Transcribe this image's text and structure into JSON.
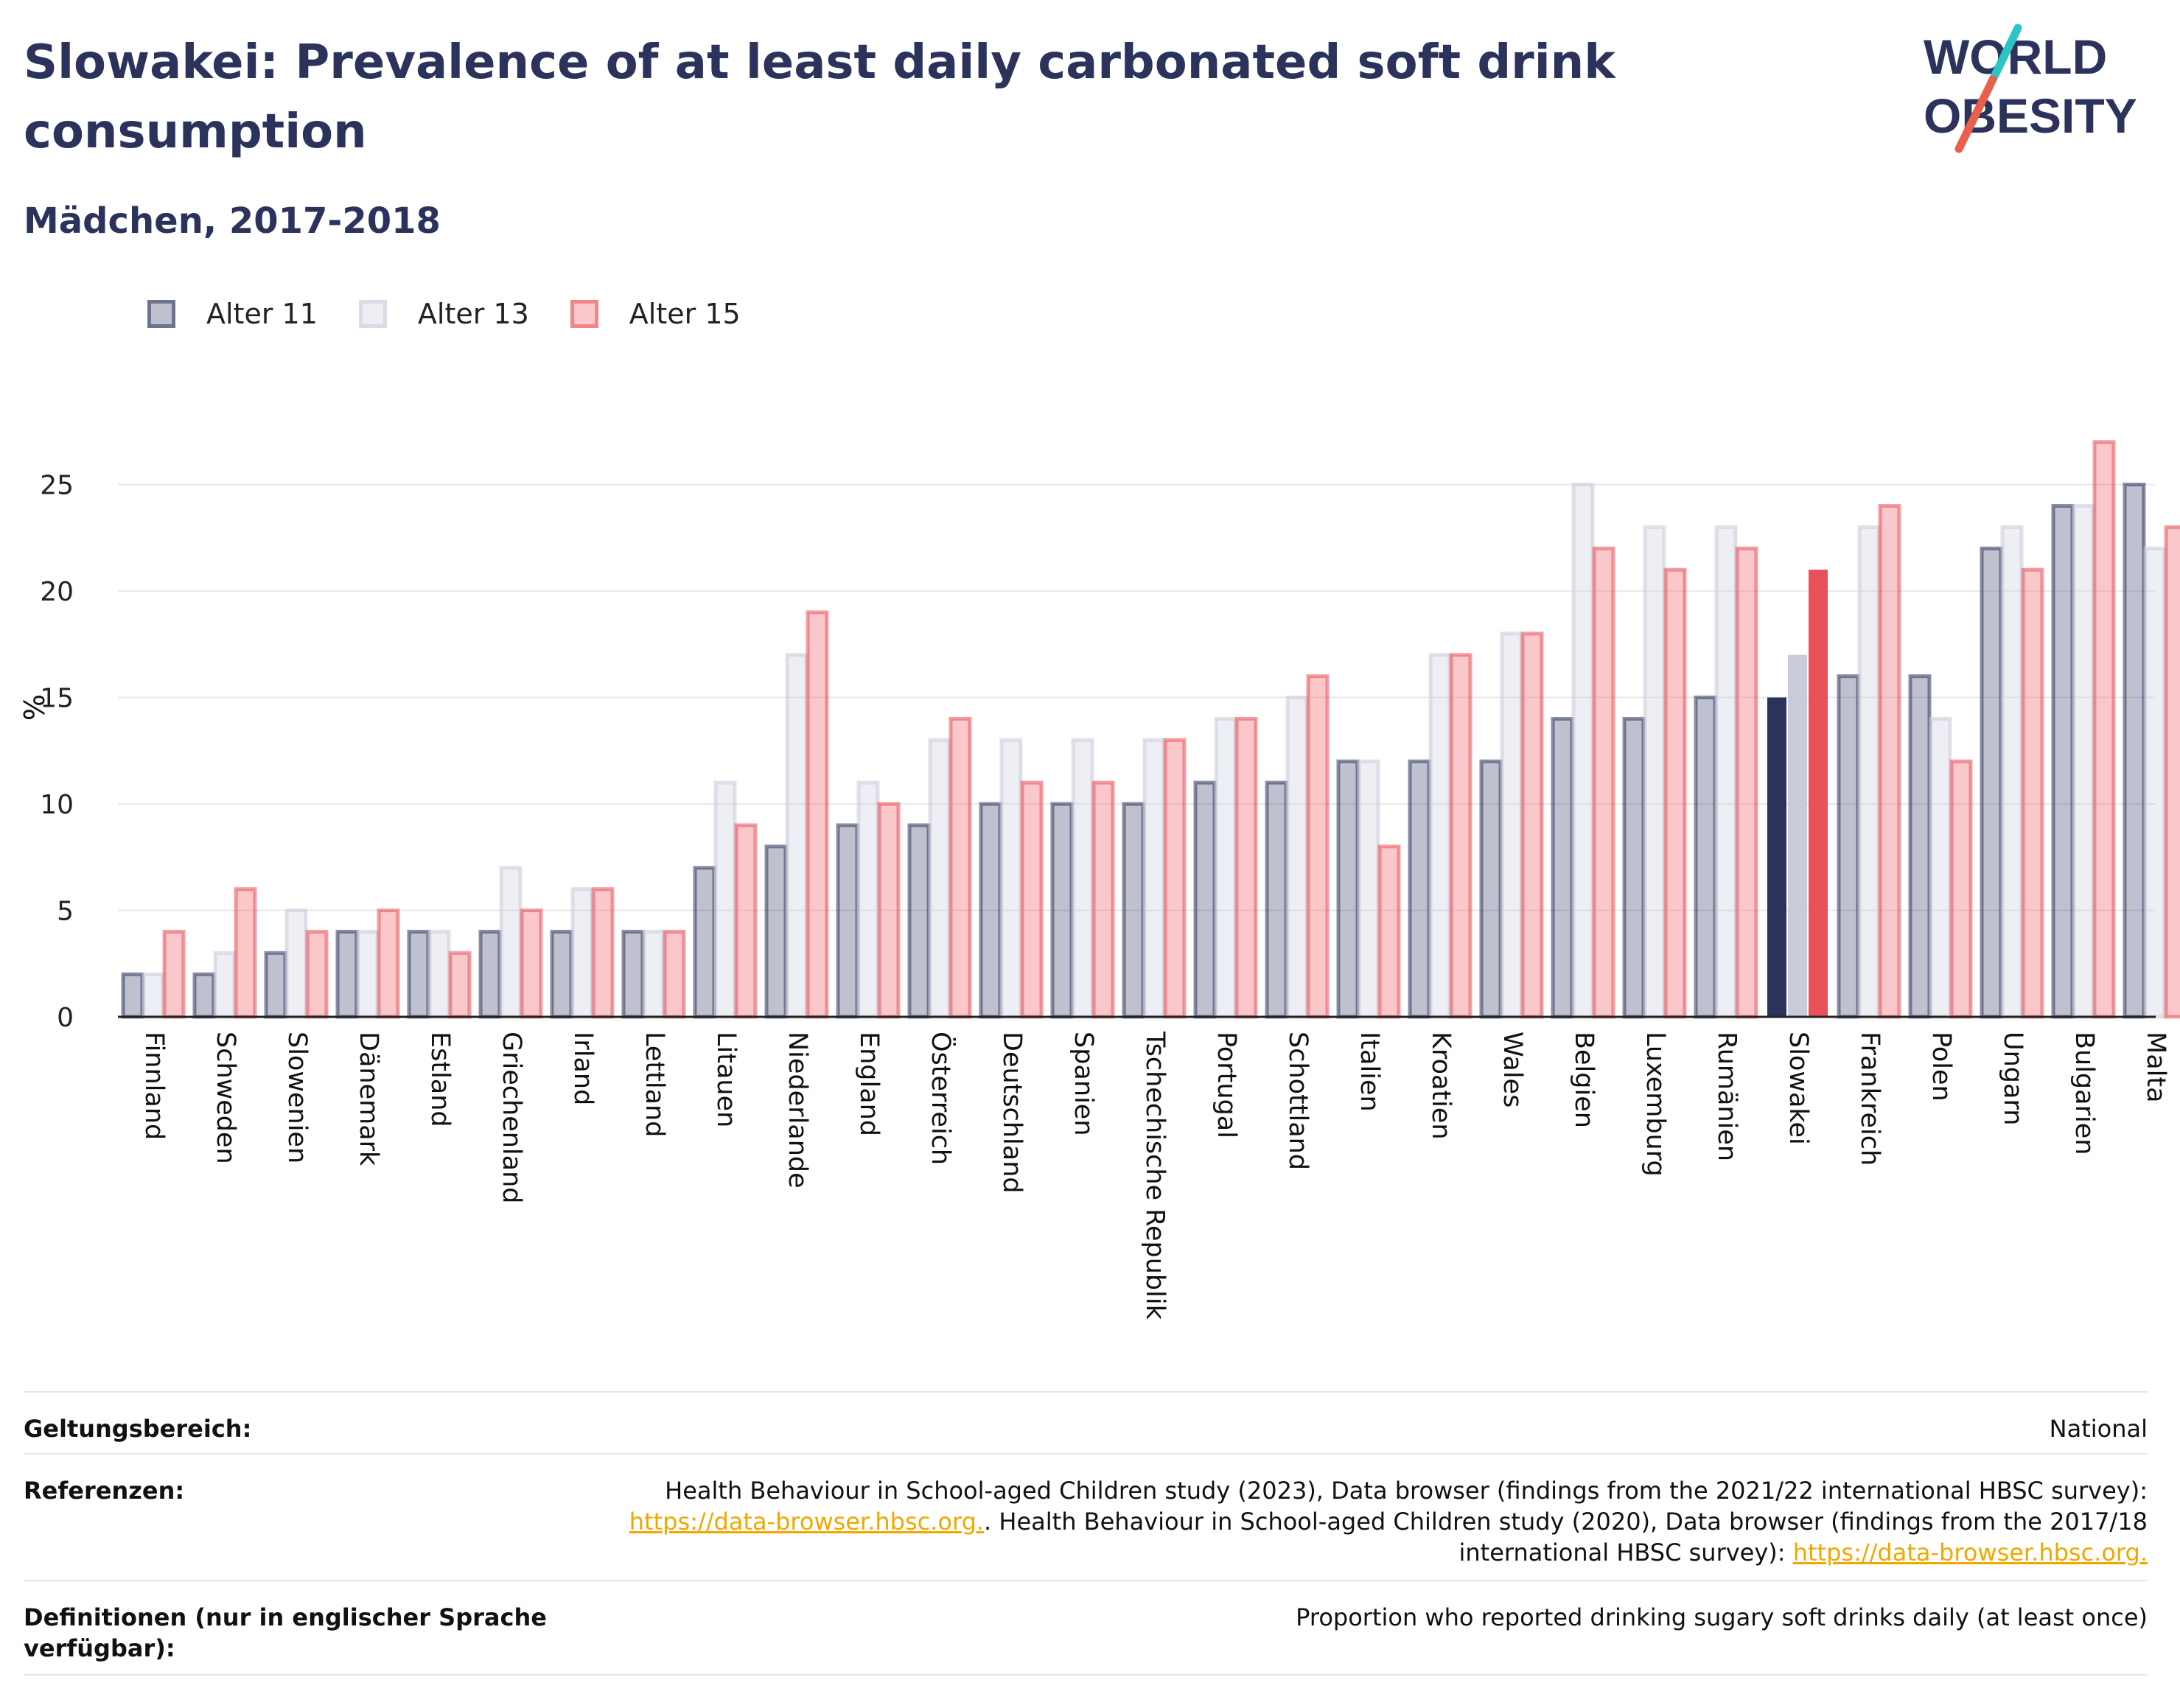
{
  "header": {
    "title": "Slowakei: Prevalence of at least daily carbonated soft drink consumption",
    "subtitle": "Mädchen, 2017-2018"
  },
  "logo": {
    "line1": "WORLD",
    "line2": "OBESITY",
    "text_color": "#2b335c",
    "slash_colors": [
      "#2ec4c4",
      "#e8604c"
    ]
  },
  "legend": {
    "items": [
      {
        "label": "Alter 11",
        "fill": "#2b335c",
        "stroke": "#2b335c"
      },
      {
        "label": "Alter 13",
        "fill": "#c8cbd9",
        "stroke": "#c8cbd9"
      },
      {
        "label": "Alter 15",
        "fill": "#f2757d",
        "stroke": "#e8515a"
      }
    ]
  },
  "chart_data": {
    "type": "bar",
    "ylabel": "%",
    "xlabel": "",
    "ylim": [
      0,
      29
    ],
    "yticks": [
      0,
      5,
      10,
      15,
      20,
      25
    ],
    "grid": true,
    "highlight_category": "Slowakei",
    "categories": [
      "Finnland",
      "Schweden",
      "Slowenien",
      "Dänemark",
      "Estland",
      "Griechenland",
      "Irland",
      "Lettland",
      "Litauen",
      "Niederlande",
      "England",
      "Österreich",
      "Deutschland",
      "Spanien",
      "Tschechische Republik",
      "Portugal",
      "Schottland",
      "Italien",
      "Kroatien",
      "Wales",
      "Belgien",
      "Luxemburg",
      "Rumänien",
      "Slowakei",
      "Frankreich",
      "Polen",
      "Ungarn",
      "Bulgarien",
      "Malta"
    ],
    "series": [
      {
        "name": "Alter 11",
        "values": [
          2,
          2,
          3,
          4,
          4,
          4,
          4,
          4,
          7,
          8,
          9,
          9,
          10,
          10,
          10,
          11,
          11,
          12,
          12,
          12,
          14,
          14,
          15,
          15,
          16,
          16,
          22,
          24,
          25
        ]
      },
      {
        "name": "Alter 13",
        "values": [
          2,
          3,
          5,
          4,
          4,
          7,
          6,
          4,
          11,
          17,
          11,
          13,
          13,
          13,
          13,
          14,
          15,
          12,
          17,
          18,
          25,
          23,
          23,
          17,
          23,
          14,
          23,
          24,
          22
        ]
      },
      {
        "name": "Alter 15",
        "values": [
          4,
          6,
          4,
          5,
          3,
          5,
          6,
          4,
          9,
          19,
          10,
          14,
          11,
          11,
          13,
          14,
          16,
          8,
          17,
          18,
          22,
          21,
          22,
          21,
          24,
          12,
          21,
          27,
          23
        ]
      }
    ]
  },
  "meta": {
    "scope_label": "Geltungsbereich:",
    "scope_value": "National",
    "refs_label": "Referenzen:",
    "refs_text1": "Health Behaviour in School-aged Children study (2023), Data browser (findings from the 2021/22 international HBSC survey):",
    "refs_link1": "https://data-browser.hbsc.org.",
    "refs_text2": ". Health Behaviour in School-aged Children study (2020), Data browser (findings from the 2017/18 international HBSC survey):",
    "refs_link2": "https://data-browser.hbsc.org.",
    "def_label": "Definitionen (nur in englischer Sprache verfügbar):",
    "def_value": "Proportion who reported drinking sugary soft drinks daily (at least once)"
  }
}
